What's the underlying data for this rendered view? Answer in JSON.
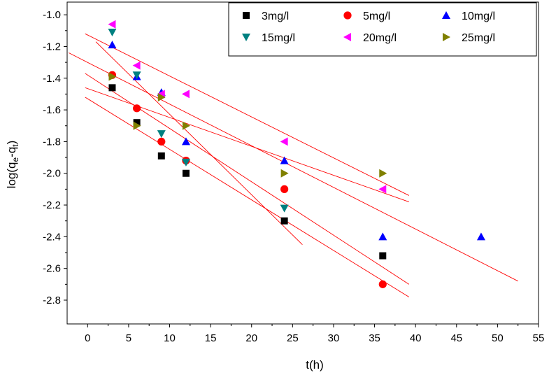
{
  "chart_data": {
    "type": "scatter",
    "title": "",
    "xlabel": "t(h)",
    "ylabel": {
      "main": "log(q",
      "sub1": "e",
      "mid": "-q",
      "sub2": "t",
      "close": ")"
    },
    "xlim": [
      -2.5,
      55
    ],
    "ylim": [
      -2.95,
      -0.92
    ],
    "x_ticks": [
      0,
      5,
      10,
      15,
      20,
      25,
      30,
      35,
      40,
      45,
      50,
      55
    ],
    "y_ticks": [
      -2.8,
      -2.6,
      -2.4,
      -2.2,
      -2.0,
      -1.8,
      -1.6,
      -1.4,
      -1.2,
      -1.0
    ],
    "grid": false,
    "legend_position": "top-right",
    "series": [
      {
        "name": "3mg/l",
        "marker": "square",
        "color": "#000000",
        "points": [
          [
            3,
            -1.46
          ],
          [
            6,
            -1.68
          ],
          [
            9,
            -1.89
          ],
          [
            12,
            -2.0
          ],
          [
            24,
            -2.3
          ],
          [
            36,
            -2.52
          ]
        ]
      },
      {
        "name": "5mg/l",
        "marker": "circle",
        "color": "#ff0000",
        "points": [
          [
            3,
            -1.38
          ],
          [
            6,
            -1.59
          ],
          [
            9,
            -1.8
          ],
          [
            12,
            -1.92
          ],
          [
            24,
            -2.1
          ],
          [
            36,
            -2.7
          ]
        ]
      },
      {
        "name": "10mg/l",
        "marker": "triangle-up",
        "color": "#0000ff",
        "points": [
          [
            3,
            -1.19
          ],
          [
            6,
            -1.39
          ],
          [
            9,
            -1.49
          ],
          [
            12,
            -1.8
          ],
          [
            24,
            -1.92
          ],
          [
            36,
            -2.4
          ],
          [
            48,
            -2.4
          ]
        ]
      },
      {
        "name": "15mg/l",
        "marker": "triangle-down",
        "color": "#008080",
        "points": [
          [
            3,
            -1.11
          ],
          [
            6,
            -1.38
          ],
          [
            9,
            -1.75
          ],
          [
            12,
            -1.93
          ],
          [
            24,
            -2.22
          ]
        ]
      },
      {
        "name": "20mg/l",
        "marker": "triangle-left",
        "color": "#ff00ff",
        "points": [
          [
            3,
            -1.06
          ],
          [
            6,
            -1.32
          ],
          [
            9,
            -1.5
          ],
          [
            12,
            -1.5
          ],
          [
            24,
            -1.8
          ],
          [
            36,
            -2.1
          ]
        ]
      },
      {
        "name": "25mg/l",
        "marker": "triangle-right",
        "color": "#808000",
        "points": [
          [
            3,
            -1.39
          ],
          [
            6,
            -1.7
          ],
          [
            9,
            -1.52
          ],
          [
            12,
            -1.7
          ],
          [
            24,
            -2.0
          ],
          [
            36,
            -2.0
          ]
        ]
      }
    ],
    "fit_lines": [
      {
        "color": "#ff0000",
        "from": [
          -0.3,
          -1.52
        ],
        "to": [
          39.2,
          -2.78
        ]
      },
      {
        "color": "#ff0000",
        "from": [
          -0.3,
          -1.37
        ],
        "to": [
          39.2,
          -2.7
        ]
      },
      {
        "color": "#ff0000",
        "from": [
          -0.3,
          -1.12
        ],
        "to": [
          39.2,
          -2.14
        ]
      },
      {
        "color": "#ff0000",
        "from": [
          -0.3,
          -1.46
        ],
        "to": [
          39.2,
          -2.18
        ]
      },
      {
        "color": "#ff0000",
        "from": [
          -2.3,
          -1.24
        ],
        "to": [
          52.5,
          -2.68
        ]
      },
      {
        "color": "#ff0000",
        "from": [
          1.0,
          -1.17
        ],
        "to": [
          26.2,
          -2.45
        ]
      }
    ]
  }
}
